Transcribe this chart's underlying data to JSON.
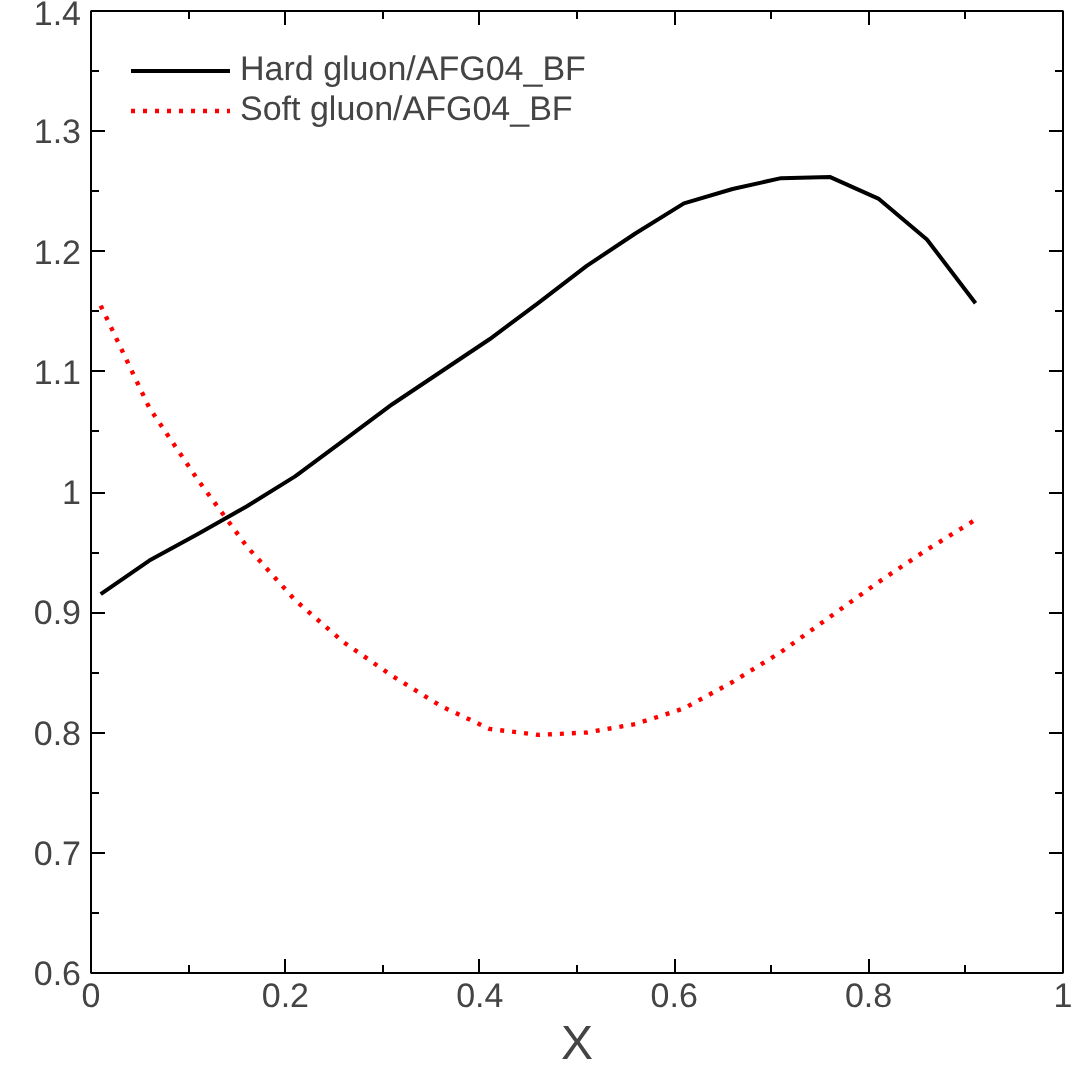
{
  "chart_data": {
    "type": "line",
    "xlabel": "X",
    "xlim": [
      0,
      1
    ],
    "ylim": [
      0.6,
      1.4
    ],
    "xticks": [
      0,
      0.2,
      0.4,
      0.6,
      0.8,
      1
    ],
    "yticks": [
      0.6,
      0.7,
      0.8,
      0.9,
      1,
      1.1,
      1.2,
      1.3,
      1.4
    ],
    "grid": false,
    "legend": "top left",
    "x": [
      0.01,
      0.06,
      0.11,
      0.16,
      0.21,
      0.26,
      0.31,
      0.36,
      0.41,
      0.46,
      0.51,
      0.56,
      0.61,
      0.66,
      0.71,
      0.76,
      0.81,
      0.86,
      0.91
    ],
    "series": [
      {
        "name": "Hard gluon/AFG04_BF",
        "color": "#000000",
        "line_style": "solid",
        "values": [
          0.915,
          0.943,
          0.965,
          0.988,
          1.013,
          1.043,
          1.073,
          1.1,
          1.127,
          1.157,
          1.188,
          1.215,
          1.24,
          1.252,
          1.261,
          1.262,
          1.244,
          1.21,
          1.157
        ]
      },
      {
        "name": "Soft gluon/AFG04_BF",
        "color": "#ff0000",
        "line_style": "dotted",
        "values": [
          1.155,
          1.07,
          1.01,
          0.955,
          0.91,
          0.875,
          0.847,
          0.822,
          0.803,
          0.798,
          0.8,
          0.807,
          0.82,
          0.842,
          0.867,
          0.896,
          0.925,
          0.952,
          0.977
        ]
      }
    ]
  }
}
